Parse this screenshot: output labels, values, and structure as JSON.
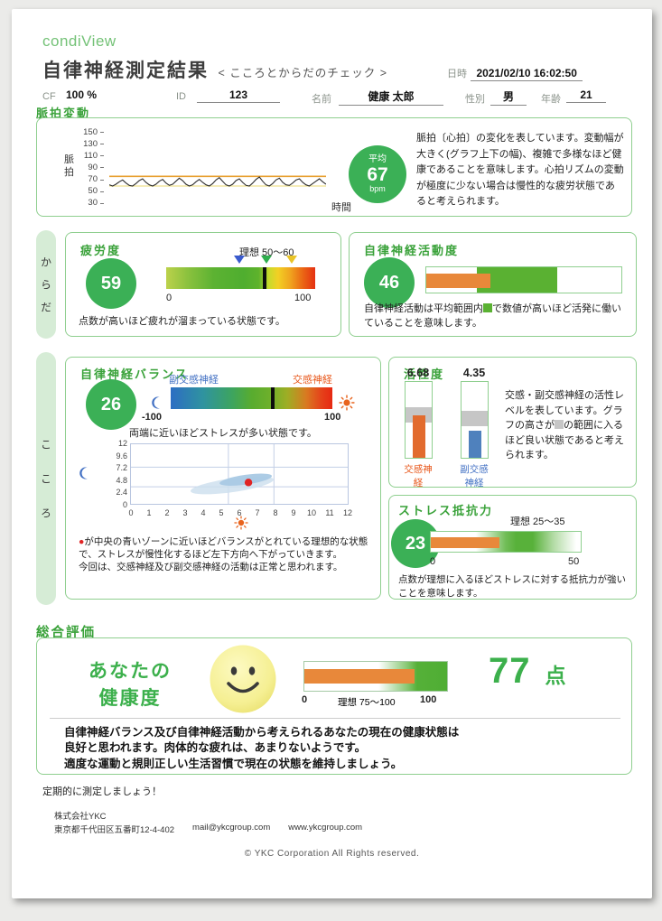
{
  "header": {
    "logo": "condiView",
    "title": "自律神経測定結果",
    "subtitle": "< こころとからだのチェック >",
    "datetime_label": "日時",
    "datetime_value": "2021/02/10 16:02:50",
    "cf_label": "CF",
    "cf_value": "100 %",
    "id_label": "ID",
    "id_value": "123",
    "name_label": "名前",
    "name_value": "健康 太郎",
    "sex_label": "性別",
    "sex_value": "男",
    "age_label": "年齢",
    "age_value": "21"
  },
  "pulse_section": {
    "title": "脈拍変動",
    "y_axis_label": "脈拍",
    "x_axis_label": "時間",
    "avg_label": "平均",
    "avg_value": "67",
    "avg_unit": "bpm",
    "description": "脈拍〔心拍〕の変化を表しています。変動幅が大きく(グラフ上下の幅)、複雑で多様なほど健康であることを意味します。心拍リズムの変動が極度に少ない場合は慢性的な疲労状態であると考えられます。"
  },
  "body_group": {
    "label": "からだ",
    "fatigue": {
      "title": "疲労度",
      "score": "59",
      "ideal_label": "理想 50～60",
      "scale_min": "0",
      "scale_max": "100",
      "caption": "点数が高いほど疲れが溜まっている状態です。"
    },
    "activity": {
      "title": "自律神経活動度",
      "score": "46",
      "caption_pre": "自律神経活動は平均範囲内",
      "caption_post": "で数値が高いほど活発に働いていることを意味します。"
    }
  },
  "mind_group": {
    "label": "こころ",
    "balance": {
      "title": "自律神経バランス",
      "score": "26",
      "left_label": "副交感神経",
      "right_label": "交感神経",
      "scale_min": "-100",
      "scale_max": "100",
      "caption": "両端に近いほどストレスが多い状態です。",
      "note_bullet": "●",
      "note_line1": "が中央の青いゾーンに近いほどバランスがとれている理想的な状態で、ストレスが慢性化するほど左下方向へ下がっていきます。",
      "note_line2": "今回は、交感神経及び副交感神経の活動は正常と思われます。"
    },
    "activation": {
      "title": "活性度",
      "desc_pre": "交感・副交感神経の活性レベルを表しています。グラフの高さが",
      "desc_post": "の範囲に入るほど良い状態であると考えられます。"
    },
    "stress": {
      "title": "ストレス抵抗力",
      "score": "23",
      "ideal_label": "理想 25～35",
      "scale_min": "0",
      "scale_max": "50",
      "caption": "点数が理想に入るほどストレスに対する抵抗力が強いことを意味します。"
    }
  },
  "overall": {
    "title": "総合評価",
    "headline_line1": "あなたの",
    "headline_line2": "健康度",
    "scale_min": "0",
    "ideal_label": "理想 75～100",
    "scale_max": "100",
    "score": "77",
    "score_unit": "点",
    "comment_lines": [
      "自律神経バランス及び自律神経活動から考えられるあなたの現在の健康状態は",
      "良好と思われます。肉体的な疲れは、あまりないようです。",
      "適度な運動と規則正しい生活習慣で現在の状態を維持しましょう。"
    ]
  },
  "footer": {
    "reminder": "定期的に測定しましょう！",
    "company": "株式会社YKC",
    "address": "東京都千代田区五番町12-4-402",
    "email": "mail@ykcgroup.com",
    "web": "www.ykcgroup.com",
    "copyright": "© YKC Corporation   All Rights reserved."
  },
  "colors": {
    "accent_green": "#3aa23a",
    "circle_green": "#3bb056",
    "box_border": "#8fcf8f",
    "orange": "#e8883a",
    "blue": "#4f81bd",
    "gray_band": "#c6c6c6",
    "red_point": "#e02424"
  },
  "chart_data": [
    {
      "id": "pulse",
      "type": "line",
      "title": "脈拍変動",
      "ylabel": "脈拍",
      "xlabel": "時間",
      "ylim": [
        30,
        150
      ],
      "yticks": [
        150,
        130,
        110,
        90,
        70,
        50,
        30
      ],
      "average_bpm": 67,
      "upper_line": 76,
      "lower_line": 60,
      "series": [
        62,
        60,
        63,
        67,
        70,
        65,
        61,
        60,
        64,
        69,
        72,
        66,
        62,
        60,
        63,
        68,
        71,
        65,
        61,
        63,
        68,
        73,
        69,
        63,
        60,
        62,
        67,
        71,
        66,
        62,
        60,
        64,
        70,
        74,
        68,
        62,
        60,
        63,
        69,
        72,
        66,
        61,
        60,
        65,
        71,
        75,
        68,
        62,
        60,
        64,
        70,
        73,
        66,
        62,
        61,
        65,
        70,
        72,
        66,
        62,
        60,
        64,
        68,
        72,
        67,
        63
      ]
    },
    {
      "id": "fatigue",
      "type": "gauge-bar",
      "value": 59,
      "scale": [
        0,
        100
      ],
      "ideal": [
        50,
        60
      ],
      "marker_pct": 66,
      "triangles": [
        {
          "color": "#3a5bce",
          "pct": 49
        },
        {
          "color": "#2fae4e",
          "pct": 67
        },
        {
          "color": "#e9c428",
          "pct": 84
        }
      ]
    },
    {
      "id": "autonomic_activity",
      "type": "range-bar",
      "value": 46,
      "bar_pct": 33,
      "band_pct": [
        26,
        67
      ]
    },
    {
      "id": "balance",
      "type": "gauge-bar",
      "value": 26,
      "scale": [
        -100,
        100
      ],
      "marker_pct": 63
    },
    {
      "id": "balance_scatter",
      "type": "scatter",
      "xlim": [
        0,
        12
      ],
      "ylim": [
        0,
        12
      ],
      "xticks": [
        0,
        1,
        2,
        3,
        4,
        5,
        6,
        7,
        8,
        9,
        10,
        11,
        12
      ],
      "yticks": [
        0,
        2.4,
        4.8,
        7.2,
        9.6,
        12
      ],
      "grid_x": [
        5.4,
        7.9
      ],
      "grid_y": [
        3.5,
        7.35
      ],
      "point": {
        "x": 6.5,
        "y": 4.35
      },
      "zones": [
        {
          "cx": 5.6,
          "cy": 3.8,
          "rx": 2.3,
          "ry": 1.35,
          "rot": -8,
          "color": "#ccdeee",
          "opacity": 0.8
        },
        {
          "cx": 6.35,
          "cy": 4.9,
          "rx": 1.45,
          "ry": 0.95,
          "rot": -8,
          "color": "#a9c9e4",
          "opacity": 0.95
        }
      ]
    },
    {
      "id": "activation",
      "type": "bar",
      "categories": [
        "交感神経",
        "副交感神経"
      ],
      "values": [
        6.68,
        4.35
      ],
      "scale_max": 12,
      "bands_pct": [
        [
          46,
          67
        ],
        [
          42,
          62
        ]
      ],
      "bar_colors": [
        "#e26b2e",
        "#4f81bd"
      ]
    },
    {
      "id": "stress",
      "type": "gauge-bar",
      "value": 23,
      "scale": [
        0,
        50
      ],
      "ideal": [
        25,
        35
      ],
      "bar_pct": 46
    },
    {
      "id": "overall",
      "type": "gauge-bar",
      "value": 77,
      "scale": [
        0,
        100
      ],
      "ideal": [
        75,
        100
      ],
      "bar_pct": 77
    }
  ]
}
